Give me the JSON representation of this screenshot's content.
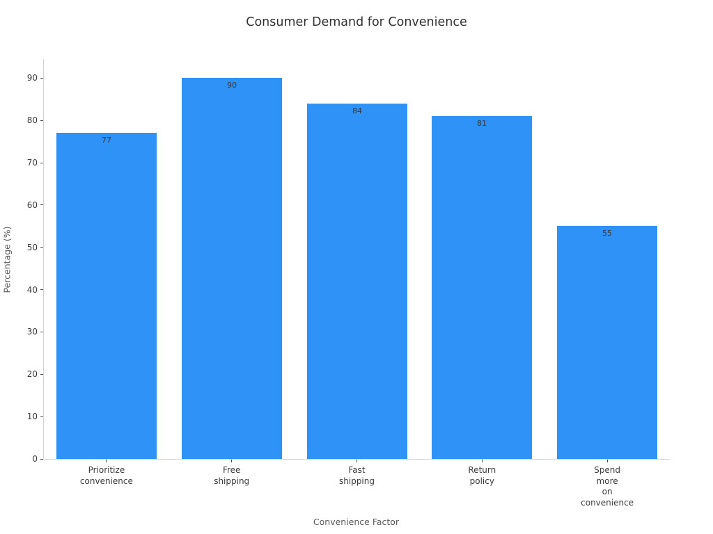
{
  "chart_data": {
    "type": "bar",
    "title": "Consumer Demand for Convenience",
    "xlabel": "Convenience Factor",
    "ylabel": "Percentage (%)",
    "categories": [
      "Prioritize\nconvenience",
      "Free\nshipping",
      "Fast\nshipping",
      "Return\npolicy",
      "Spend\nmore\non\nconvenience"
    ],
    "values": [
      77,
      90,
      84,
      81,
      55
    ],
    "value_labels": [
      "77",
      "90",
      "84",
      "81",
      "55"
    ],
    "yticks": [
      0,
      10,
      20,
      30,
      40,
      50,
      60,
      70,
      80,
      90
    ],
    "ylim": [
      0,
      94.5
    ],
    "grid": false,
    "legend": null,
    "bar_color": "#2e92f7",
    "value_label_color": "#3a3a3a",
    "background_color": "#ffffff",
    "spine_color": "#d4d4d4",
    "tick_label_color": "#3c3c3c",
    "axis_title_color": "#5a5a5a",
    "title_color": "#323232"
  }
}
